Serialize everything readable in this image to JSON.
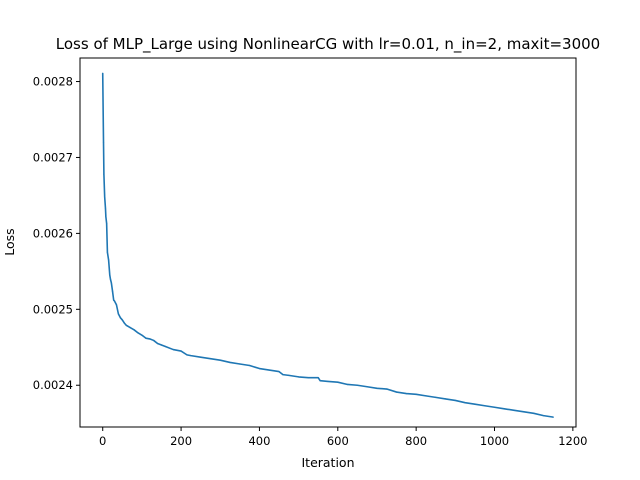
{
  "chart_data": {
    "type": "line",
    "title": "Loss of MLP_Large using NonlinearCG with lr=0.01, n_in=2, maxit=3000",
    "xlabel": "Iteration",
    "ylabel": "Loss",
    "xlim": [
      -58,
      1208
    ],
    "ylim": [
      0.002345,
      0.002831
    ],
    "x_ticks": [
      0,
      200,
      400,
      600,
      800,
      1000,
      1200
    ],
    "y_ticks": [
      0.0024,
      0.0025,
      0.0026,
      0.0027,
      0.0028
    ],
    "x_tick_labels": [
      "0",
      "200",
      "400",
      "600",
      "800",
      "1000",
      "1200"
    ],
    "y_tick_labels": [
      "0.0024",
      "0.0025",
      "0.0026",
      "0.0027",
      "0.0028"
    ],
    "grid": false,
    "legend": "none",
    "series": [
      {
        "color": "#1f77b4",
        "x": [
          0,
          2,
          3,
          5,
          7,
          8,
          10,
          12,
          15,
          18,
          20,
          22,
          25,
          28,
          30,
          35,
          40,
          45,
          50,
          55,
          60,
          70,
          80,
          90,
          100,
          110,
          120,
          130,
          140,
          150,
          160,
          180,
          200,
          215,
          225,
          250,
          275,
          300,
          325,
          350,
          375,
          400,
          425,
          450,
          460,
          475,
          500,
          525,
          550,
          555,
          575,
          600,
          625,
          650,
          675,
          700,
          725,
          750,
          775,
          800,
          825,
          850,
          875,
          900,
          925,
          950,
          975,
          1000,
          1025,
          1050,
          1075,
          1100,
          1125,
          1150
        ],
        "y": [
          0.002811,
          0.00272,
          0.002678,
          0.002648,
          0.002633,
          0.002622,
          0.002613,
          0.002575,
          0.002565,
          0.002545,
          0.002539,
          0.002535,
          0.002524,
          0.002512,
          0.002511,
          0.002506,
          0.002494,
          0.002489,
          0.002486,
          0.002482,
          0.002479,
          0.002476,
          0.002473,
          0.002469,
          0.002466,
          0.002462,
          0.002461,
          0.002459,
          0.002455,
          0.002453,
          0.002451,
          0.002447,
          0.002445,
          0.00244,
          0.002439,
          0.002437,
          0.002435,
          0.002433,
          0.00243,
          0.002428,
          0.002426,
          0.002422,
          0.00242,
          0.002418,
          0.002414,
          0.002413,
          0.002411,
          0.00241,
          0.00241,
          0.002406,
          0.002405,
          0.002404,
          0.002401,
          0.0024,
          0.002398,
          0.002396,
          0.002395,
          0.002391,
          0.002389,
          0.002388,
          0.002386,
          0.002384,
          0.002382,
          0.00238,
          0.002377,
          0.002375,
          0.002373,
          0.002371,
          0.002369,
          0.002367,
          0.002365,
          0.002363,
          0.00236,
          0.002358
        ]
      }
    ]
  }
}
